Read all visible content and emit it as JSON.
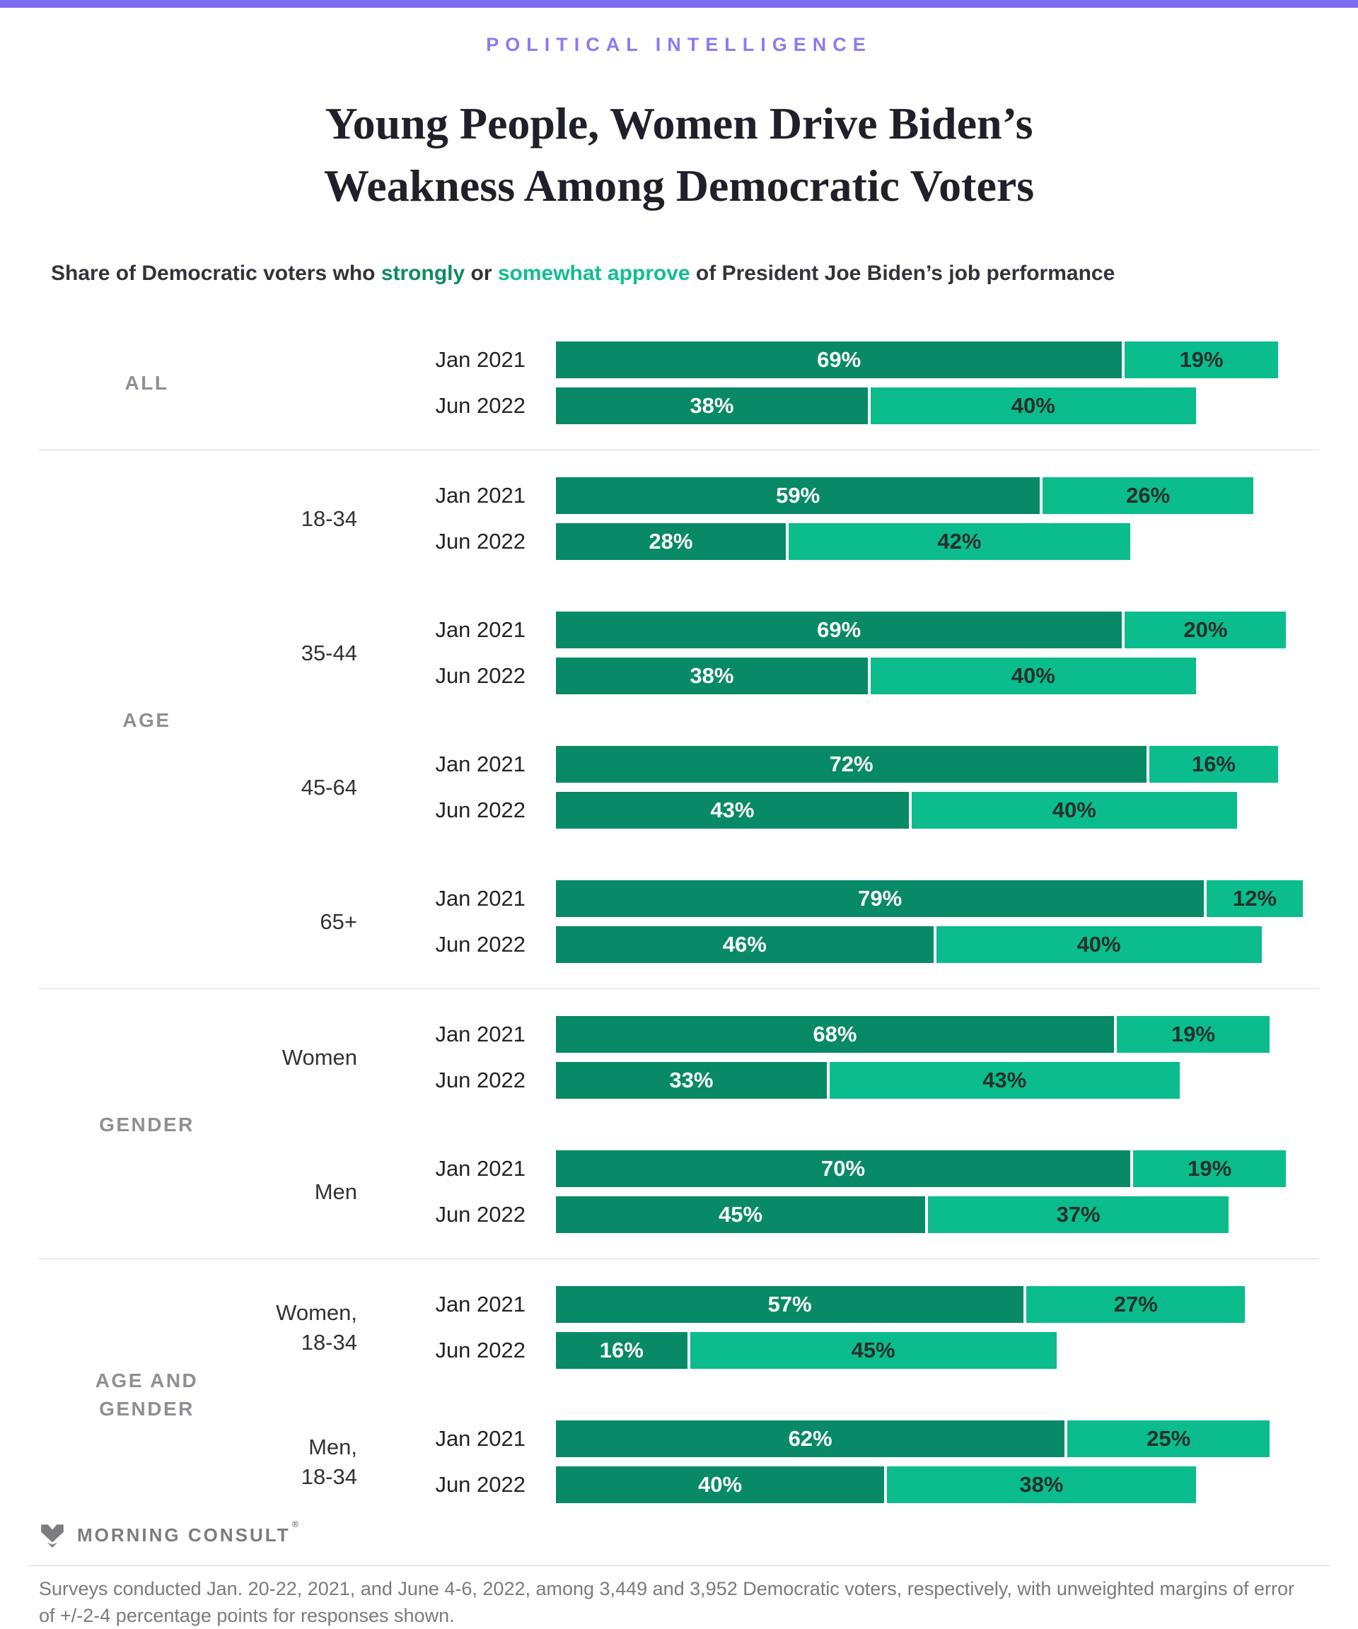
{
  "eyebrow": "POLITICAL INTELLIGENCE",
  "title": {
    "line1": "Young People, Women Drive Biden’s",
    "line2": "Weakness Among Democratic Voters"
  },
  "subtitle": {
    "prefix": "Share of Democratic voters who ",
    "strongly": "strongly",
    "mid": " or ",
    "somewhat": "somewhat approve",
    "suffix": " of President Joe Biden’s job performance"
  },
  "colors": {
    "accent_purple": "#7c6cf0",
    "strongly_green": "#078a65",
    "somewhat_green": "#0bbc8c"
  },
  "chart_data": {
    "type": "bar",
    "orientation": "horizontal-stacked",
    "unit": "%",
    "xlim": [
      0,
      100
    ],
    "series": [
      "strongly approve",
      "somewhat approve"
    ],
    "periods": [
      "Jan 2021",
      "Jun 2022"
    ],
    "groups": [
      {
        "label": "ALL",
        "categories": [
          {
            "label": "",
            "rows": [
              {
                "period": "Jan 2021",
                "strongly": 69,
                "somewhat": 19
              },
              {
                "period": "Jun 2022",
                "strongly": 38,
                "somewhat": 40
              }
            ]
          }
        ]
      },
      {
        "label": "AGE",
        "categories": [
          {
            "label": "18-34",
            "rows": [
              {
                "period": "Jan 2021",
                "strongly": 59,
                "somewhat": 26
              },
              {
                "period": "Jun 2022",
                "strongly": 28,
                "somewhat": 42
              }
            ]
          },
          {
            "label": "35-44",
            "rows": [
              {
                "period": "Jan 2021",
                "strongly": 69,
                "somewhat": 20
              },
              {
                "period": "Jun 2022",
                "strongly": 38,
                "somewhat": 40
              }
            ]
          },
          {
            "label": "45-64",
            "rows": [
              {
                "period": "Jan 2021",
                "strongly": 72,
                "somewhat": 16
              },
              {
                "period": "Jun 2022",
                "strongly": 43,
                "somewhat": 40
              }
            ]
          },
          {
            "label": "65+",
            "rows": [
              {
                "period": "Jan 2021",
                "strongly": 79,
                "somewhat": 12
              },
              {
                "period": "Jun 2022",
                "strongly": 46,
                "somewhat": 40
              }
            ]
          }
        ]
      },
      {
        "label": "GENDER",
        "categories": [
          {
            "label": "Women",
            "rows": [
              {
                "period": "Jan 2021",
                "strongly": 68,
                "somewhat": 19
              },
              {
                "period": "Jun 2022",
                "strongly": 33,
                "somewhat": 43
              }
            ]
          },
          {
            "label": "Men",
            "rows": [
              {
                "period": "Jan 2021",
                "strongly": 70,
                "somewhat": 19
              },
              {
                "period": "Jun 2022",
                "strongly": 45,
                "somewhat": 37
              }
            ]
          }
        ]
      },
      {
        "label": "AGE AND\nGENDER",
        "categories": [
          {
            "label": "Women,\n18-34",
            "rows": [
              {
                "period": "Jan 2021",
                "strongly": 57,
                "somewhat": 27
              },
              {
                "period": "Jun 2022",
                "strongly": 16,
                "somewhat": 45
              }
            ]
          },
          {
            "label": "Men,\n18-34",
            "rows": [
              {
                "period": "Jan 2021",
                "strongly": 62,
                "somewhat": 25
              },
              {
                "period": "Jun 2022",
                "strongly": 40,
                "somewhat": 38
              }
            ]
          }
        ]
      }
    ]
  },
  "footer": {
    "logo_text": "MORNING CONSULT",
    "logo_mark": "®",
    "note": "Surveys conducted Jan. 20-22, 2021, and June 4-6, 2022, among 3,449 and 3,952 Democratic voters, respectively, with unweighted margins of error of +/-2-4 percentage points for responses shown."
  }
}
